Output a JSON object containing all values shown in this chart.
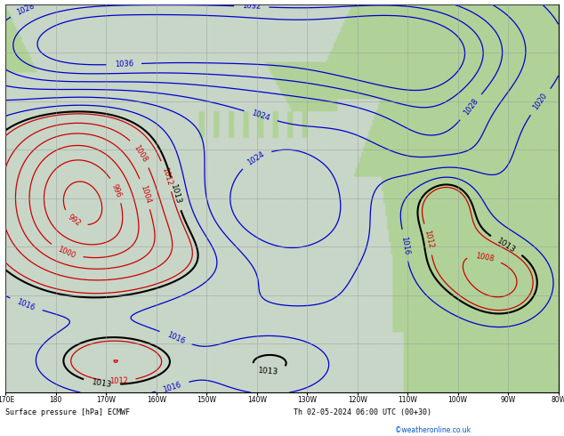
{
  "title_left": "Surface pressure [hPa] ECMWF",
  "title_right": "Th 02-05-2024 06:00 UTC (00+30)",
  "watermark": "©weatheronline.co.uk",
  "xlabel_ticks": [
    "170E",
    "180",
    "170W",
    "160W",
    "150W",
    "140W",
    "130W",
    "120W",
    "110W",
    "100W",
    "90W",
    "80W"
  ],
  "figsize": [
    6.34,
    4.9
  ],
  "dpi": 100,
  "bg_land": "#b8d8a0",
  "bg_sea": "#d8e8d8",
  "grid_color": "#999999",
  "contour_color_low": "#cc0000",
  "contour_color_high": "#0000cc",
  "contour_color_mid": "#000000",
  "label_fontsize": 6.0,
  "contour_lw_low": 0.9,
  "contour_lw_high": 0.9,
  "contour_lw_mid": 1.5
}
